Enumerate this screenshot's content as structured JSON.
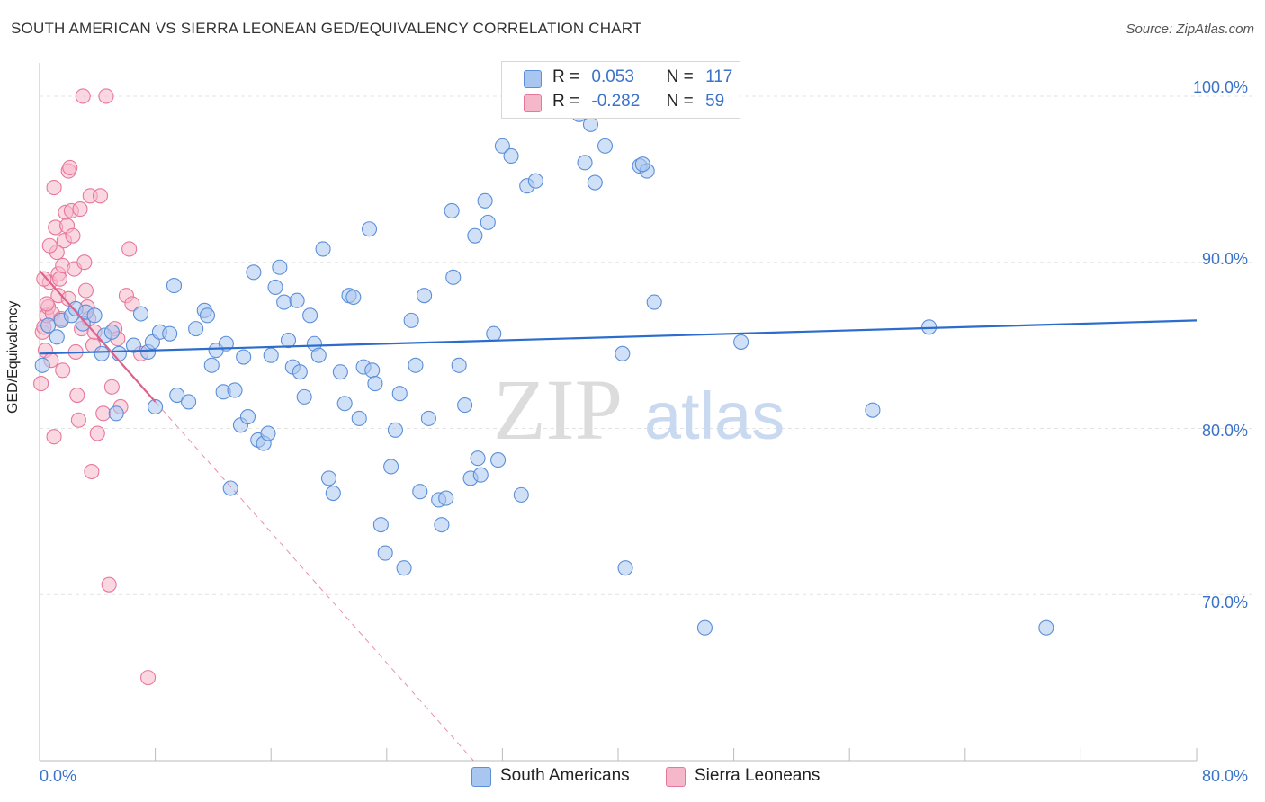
{
  "title": "SOUTH AMERICAN VS SIERRA LEONEAN GED/EQUIVALENCY CORRELATION CHART",
  "source": "Source: ZipAtlas.com",
  "watermark": {
    "zip": "ZIP",
    "atlas": "atlas"
  },
  "colors": {
    "blue_fill": "#a9c6f0",
    "blue_stroke": "#5b8fd8",
    "blue_line": "#2b6ccc",
    "pink_fill": "#f5b8cb",
    "pink_stroke": "#e8779c",
    "pink_line": "#e0608c",
    "axis_text": "#3b73c8",
    "grid": "#e3e3e3"
  },
  "legend": {
    "r_label": "R =",
    "n_label": "N =",
    "rows": [
      {
        "swatch": "blue",
        "r": "0.053",
        "n": "117"
      },
      {
        "swatch": "pink",
        "r": "-0.282",
        "n": "59"
      }
    ]
  },
  "chart_data": {
    "type": "scatter",
    "title": "SOUTH AMERICAN VS SIERRA LEONEAN GED/EQUIVALENCY CORRELATION CHART",
    "xlabel": "",
    "ylabel": "GED/Equivalency",
    "xlim": [
      0,
      80
    ],
    "ylim": [
      60,
      102
    ],
    "x_tick_labels": [
      "0.0%",
      "80.0%"
    ],
    "y_ticks": [
      70,
      80,
      90,
      100
    ],
    "y_tick_labels": [
      "70.0%",
      "80.0%",
      "90.0%",
      "100.0%"
    ],
    "grid": true,
    "legend_position": "top-center",
    "series": [
      {
        "name": "South Americans",
        "color": "blue",
        "trend": {
          "x": [
            0,
            80
          ],
          "y": [
            84.5,
            86.5
          ]
        },
        "points": [
          [
            0.2,
            83.8
          ],
          [
            0.6,
            86.2
          ],
          [
            1.2,
            85.5
          ],
          [
            1.5,
            86.5
          ],
          [
            2.2,
            86.8
          ],
          [
            2.5,
            87.2
          ],
          [
            3.0,
            86.3
          ],
          [
            3.2,
            87.0
          ],
          [
            3.8,
            86.8
          ],
          [
            4.5,
            85.6
          ],
          [
            4.3,
            84.5
          ],
          [
            5.0,
            85.8
          ],
          [
            5.5,
            84.5
          ],
          [
            5.3,
            80.9
          ],
          [
            6.5,
            85.0
          ],
          [
            7.0,
            86.9
          ],
          [
            7.5,
            84.6
          ],
          [
            8.0,
            81.3
          ],
          [
            7.8,
            85.2
          ],
          [
            8.3,
            85.8
          ],
          [
            9.0,
            85.7
          ],
          [
            9.3,
            88.6
          ],
          [
            9.5,
            82.0
          ],
          [
            10.3,
            81.6
          ],
          [
            10.8,
            86.0
          ],
          [
            11.4,
            87.1
          ],
          [
            11.6,
            86.8
          ],
          [
            11.9,
            83.8
          ],
          [
            12.2,
            84.7
          ],
          [
            12.7,
            82.2
          ],
          [
            12.9,
            85.1
          ],
          [
            13.2,
            76.4
          ],
          [
            13.5,
            82.3
          ],
          [
            13.9,
            80.2
          ],
          [
            14.1,
            84.3
          ],
          [
            14.4,
            80.7
          ],
          [
            14.8,
            89.4
          ],
          [
            15.1,
            79.3
          ],
          [
            15.5,
            79.1
          ],
          [
            15.8,
            79.7
          ],
          [
            16.0,
            84.4
          ],
          [
            16.3,
            88.5
          ],
          [
            16.6,
            89.7
          ],
          [
            16.9,
            87.6
          ],
          [
            17.2,
            85.3
          ],
          [
            17.5,
            83.7
          ],
          [
            17.8,
            87.7
          ],
          [
            18.0,
            83.4
          ],
          [
            18.3,
            81.9
          ],
          [
            18.7,
            86.8
          ],
          [
            19.0,
            85.1
          ],
          [
            19.3,
            84.4
          ],
          [
            19.6,
            90.8
          ],
          [
            20.0,
            77.0
          ],
          [
            20.3,
            76.1
          ],
          [
            20.8,
            83.4
          ],
          [
            21.1,
            81.5
          ],
          [
            21.4,
            88.0
          ],
          [
            21.7,
            87.9
          ],
          [
            22.1,
            80.6
          ],
          [
            22.4,
            83.7
          ],
          [
            22.8,
            92.0
          ],
          [
            23.0,
            83.5
          ],
          [
            23.2,
            82.7
          ],
          [
            23.6,
            74.2
          ],
          [
            23.9,
            72.5
          ],
          [
            24.3,
            77.7
          ],
          [
            24.6,
            79.9
          ],
          [
            24.9,
            82.1
          ],
          [
            25.2,
            71.6
          ],
          [
            25.7,
            86.5
          ],
          [
            26.0,
            83.8
          ],
          [
            26.3,
            76.2
          ],
          [
            26.6,
            88.0
          ],
          [
            26.9,
            80.6
          ],
          [
            27.6,
            75.7
          ],
          [
            27.8,
            74.2
          ],
          [
            28.1,
            75.8
          ],
          [
            28.5,
            93.1
          ],
          [
            28.6,
            89.1
          ],
          [
            29.0,
            83.8
          ],
          [
            29.4,
            81.4
          ],
          [
            29.8,
            77.0
          ],
          [
            30.1,
            91.6
          ],
          [
            30.3,
            78.2
          ],
          [
            30.5,
            77.2
          ],
          [
            30.8,
            93.7
          ],
          [
            31.0,
            92.4
          ],
          [
            31.4,
            85.7
          ],
          [
            31.7,
            78.1
          ],
          [
            32.0,
            97.0
          ],
          [
            32.6,
            96.4
          ],
          [
            33.3,
            76.0
          ],
          [
            33.7,
            94.6
          ],
          [
            34.3,
            94.9
          ],
          [
            35.2,
            101.0
          ],
          [
            35.6,
            99.8
          ],
          [
            36.4,
            99.4
          ],
          [
            37.3,
            98.9
          ],
          [
            37.7,
            96.0
          ],
          [
            38.1,
            98.3
          ],
          [
            38.4,
            94.8
          ],
          [
            39.1,
            97.0
          ],
          [
            40.0,
            99.8
          ],
          [
            40.3,
            84.5
          ],
          [
            40.5,
            71.6
          ],
          [
            40.9,
            100.0
          ],
          [
            41.5,
            95.8
          ],
          [
            42.0,
            95.5
          ],
          [
            42.5,
            87.6
          ],
          [
            41.7,
            95.9
          ],
          [
            46.0,
            68.0
          ],
          [
            48.5,
            85.2
          ],
          [
            57.6,
            81.1
          ],
          [
            61.5,
            86.1
          ],
          [
            69.6,
            68.0
          ]
        ]
      },
      {
        "name": "Sierra Leoneans",
        "color": "pink",
        "trend": {
          "x": [
            0,
            8
          ],
          "y": [
            89.5,
            81.6
          ]
        },
        "trend_dashed": {
          "x": [
            8,
            30
          ],
          "y": [
            81.6,
            60.0
          ]
        },
        "points": [
          [
            0.1,
            82.7
          ],
          [
            0.2,
            85.8
          ],
          [
            0.3,
            86.1
          ],
          [
            0.4,
            84.7
          ],
          [
            0.5,
            86.8
          ],
          [
            0.6,
            87.3
          ],
          [
            0.7,
            88.8
          ],
          [
            0.8,
            84.1
          ],
          [
            0.9,
            86.9
          ],
          [
            1.0,
            79.5
          ],
          [
            1.1,
            92.1
          ],
          [
            1.2,
            90.6
          ],
          [
            1.3,
            89.3
          ],
          [
            1.4,
            89.0
          ],
          [
            1.5,
            86.6
          ],
          [
            1.6,
            89.8
          ],
          [
            1.7,
            91.3
          ],
          [
            1.8,
            93.0
          ],
          [
            1.9,
            92.2
          ],
          [
            2.0,
            95.5
          ],
          [
            2.1,
            95.7
          ],
          [
            2.2,
            93.1
          ],
          [
            2.3,
            91.6
          ],
          [
            2.4,
            89.6
          ],
          [
            2.5,
            84.6
          ],
          [
            2.6,
            82.0
          ],
          [
            2.7,
            80.5
          ],
          [
            2.8,
            93.2
          ],
          [
            2.9,
            86.0
          ],
          [
            3.0,
            100.0
          ],
          [
            3.1,
            90.0
          ],
          [
            3.2,
            88.3
          ],
          [
            3.3,
            87.3
          ],
          [
            3.4,
            86.6
          ],
          [
            3.5,
            94.0
          ],
          [
            3.6,
            77.4
          ],
          [
            3.7,
            85.0
          ],
          [
            3.8,
            85.8
          ],
          [
            4.0,
            79.7
          ],
          [
            4.2,
            94.0
          ],
          [
            4.4,
            80.9
          ],
          [
            4.6,
            100.0
          ],
          [
            4.8,
            70.6
          ],
          [
            5.0,
            82.5
          ],
          [
            5.2,
            86.0
          ],
          [
            5.4,
            85.4
          ],
          [
            5.6,
            81.3
          ],
          [
            6.0,
            88.0
          ],
          [
            6.2,
            90.8
          ],
          [
            6.4,
            87.5
          ],
          [
            7.0,
            84.5
          ],
          [
            7.5,
            65.0
          ],
          [
            0.3,
            89.0
          ],
          [
            0.5,
            87.5
          ],
          [
            0.7,
            91.0
          ],
          [
            1.0,
            94.5
          ],
          [
            1.3,
            88.0
          ],
          [
            1.6,
            83.5
          ],
          [
            2.0,
            87.8
          ]
        ]
      }
    ]
  },
  "bottom_legend": [
    {
      "swatch": "blue",
      "label": "South Americans"
    },
    {
      "swatch": "pink",
      "label": "Sierra Leoneans"
    }
  ]
}
